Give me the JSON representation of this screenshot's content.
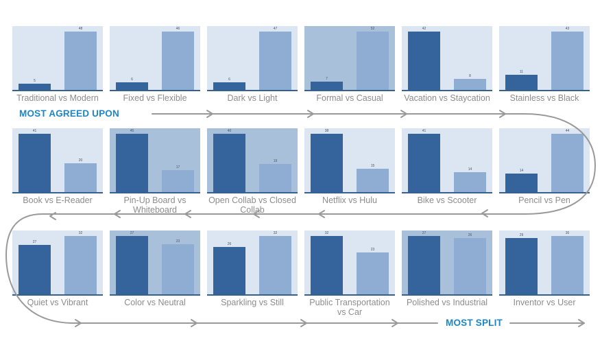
{
  "annotations": {
    "most_agreed": "MOST AGREED UPON",
    "most_split": "MOST SPLIT"
  },
  "colors": {
    "accent_text": "#1b86c8",
    "arrow": "#999999",
    "bar_primary": "#35649d",
    "bar_secondary": "#8fadd2",
    "chart_bg_light": "#dce6f2",
    "chart_bg_dark": "#a9c0da",
    "axis_line": "#35618f",
    "title_gray": "#8c8c8c",
    "value_label": "#44546a"
  },
  "layout": {
    "rows_of": 6,
    "flow": "snake: most agreed upon (top-left) to most split (bottom-right)"
  },
  "chart_data": [
    {
      "type": "bar",
      "title": "Traditional vs Modern",
      "categories": [
        "Traditional",
        "Modern"
      ],
      "values": [
        5,
        48
      ],
      "background": "light"
    },
    {
      "type": "bar",
      "title": "Fixed vs Flexible",
      "categories": [
        "Fixed",
        "Flexible"
      ],
      "values": [
        6,
        46
      ],
      "background": "light"
    },
    {
      "type": "bar",
      "title": "Dark vs Light",
      "categories": [
        "Dark",
        "Light"
      ],
      "values": [
        6,
        47
      ],
      "background": "light"
    },
    {
      "type": "bar",
      "title": "Formal vs Casual",
      "categories": [
        "Formal",
        "Casual"
      ],
      "values": [
        7,
        52
      ],
      "background": "dark"
    },
    {
      "type": "bar",
      "title": "Vacation vs Staycation",
      "categories": [
        "Vacation",
        "Staycation"
      ],
      "values": [
        42,
        8
      ],
      "background": "light"
    },
    {
      "type": "bar",
      "title": "Stainless vs Black",
      "categories": [
        "Stainless",
        "Black"
      ],
      "values": [
        11,
        43
      ],
      "background": "light"
    },
    {
      "type": "bar",
      "title": "Book vs E-Reader",
      "categories": [
        "Book",
        "E-Reader"
      ],
      "values": [
        41,
        20
      ],
      "background": "light"
    },
    {
      "type": "bar",
      "title": "Pin-Up Board vs Whiteboard",
      "categories": [
        "Pin-Up Board",
        "Whiteboard"
      ],
      "values": [
        45,
        17
      ],
      "background": "dark"
    },
    {
      "type": "bar",
      "title": "Open Collab vs Closed Collab",
      "categories": [
        "Open Collab",
        "Closed Collab"
      ],
      "values": [
        40,
        19
      ],
      "background": "dark"
    },
    {
      "type": "bar",
      "title": "Netflix vs Hulu",
      "categories": [
        "Netflix",
        "Hulu"
      ],
      "values": [
        38,
        15
      ],
      "background": "light"
    },
    {
      "type": "bar",
      "title": "Bike vs Scooter",
      "categories": [
        "Bike",
        "Scooter"
      ],
      "values": [
        41,
        14
      ],
      "background": "light"
    },
    {
      "type": "bar",
      "title": "Pencil vs Pen",
      "categories": [
        "Pencil",
        "Pen"
      ],
      "values": [
        14,
        44
      ],
      "background": "light"
    },
    {
      "type": "bar",
      "title": "Quiet vs Vibrant",
      "categories": [
        "Quiet",
        "Vibrant"
      ],
      "values": [
        27,
        32
      ],
      "background": "light"
    },
    {
      "type": "bar",
      "title": "Color vs Neutral",
      "categories": [
        "Color",
        "Neutral"
      ],
      "values": [
        27,
        23
      ],
      "background": "dark"
    },
    {
      "type": "bar",
      "title": "Sparkling vs Still",
      "categories": [
        "Sparkling",
        "Still"
      ],
      "values": [
        26,
        32
      ],
      "background": "light"
    },
    {
      "type": "bar",
      "title": "Public Transportation vs Car",
      "categories": [
        "Public Transportation",
        "Car"
      ],
      "values": [
        32,
        23
      ],
      "background": "light"
    },
    {
      "type": "bar",
      "title": "Polished vs Industrial",
      "categories": [
        "Polished",
        "Industrial"
      ],
      "values": [
        27,
        26
      ],
      "background": "dark"
    },
    {
      "type": "bar",
      "title": "Inventor vs User",
      "categories": [
        "Inventor",
        "User"
      ],
      "values": [
        29,
        30
      ],
      "background": "light"
    }
  ]
}
